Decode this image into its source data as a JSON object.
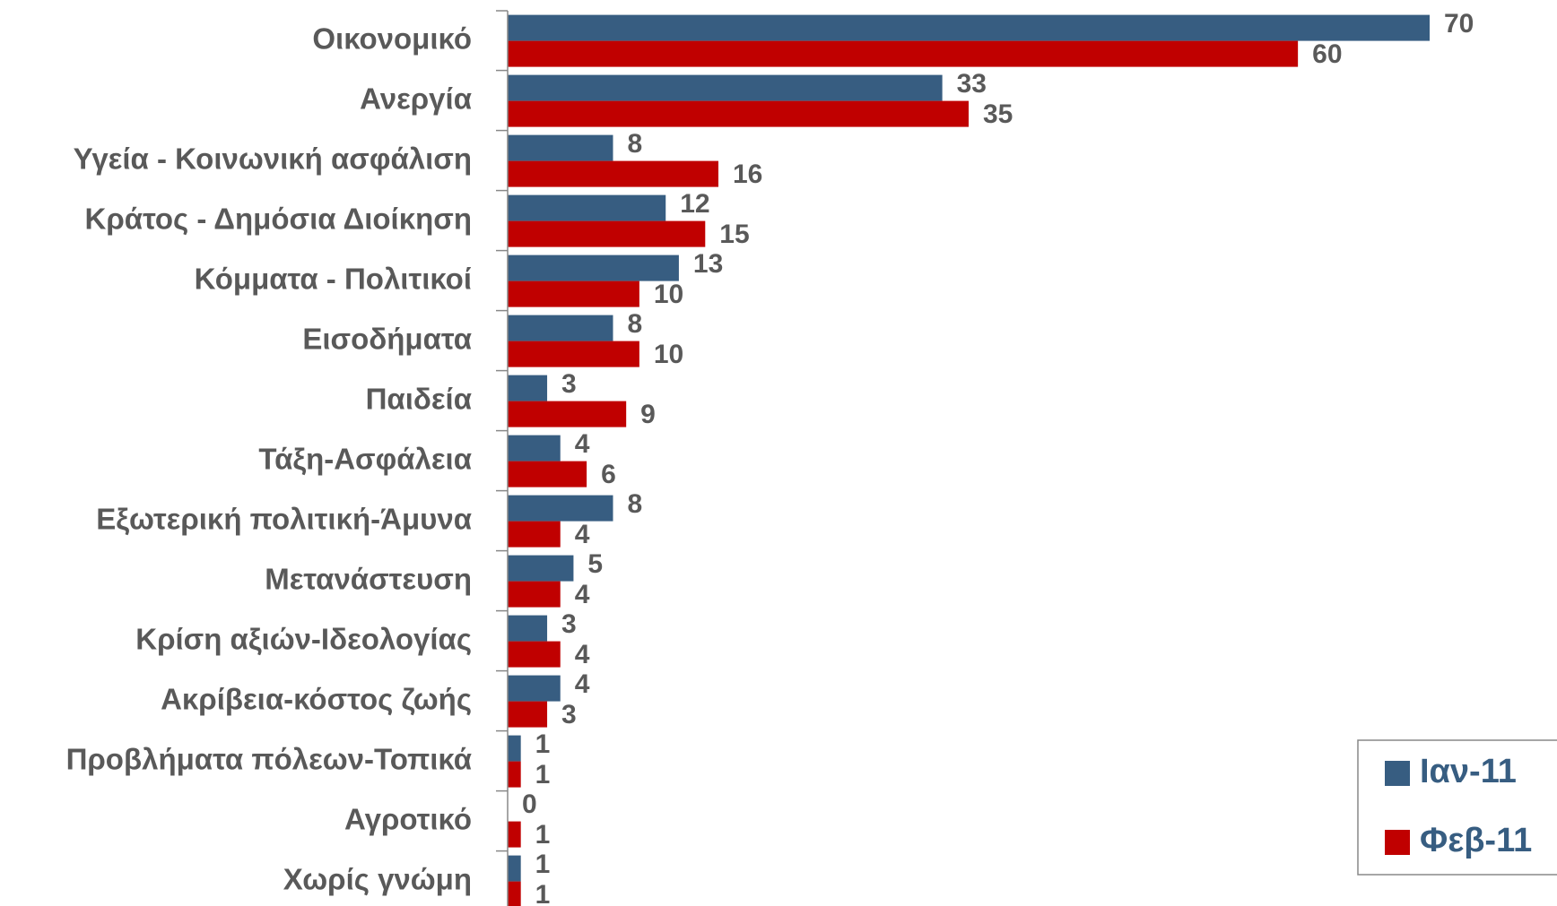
{
  "chart_data": {
    "type": "bar",
    "orientation": "horizontal",
    "categories": [
      "Οικονομικό",
      "Ανεργία",
      "Υγεία - Κοινωνική ασφάλιση",
      "Κράτος - Δημόσια Διοίκηση",
      "Κόμματα - Πολιτικοί",
      "Εισοδήματα",
      "Παιδεία",
      "Τάξη-Ασφάλεια",
      "Εξωτερική πολιτική-Άμυνα",
      "Μετανάστευση",
      "Κρίση αξιών-Ιδεολογίας",
      "Ακρίβεια-κόστος ζωής",
      "Προβλήματα πόλεων-Τοπικά",
      "Αγροτικό",
      "Χωρίς γνώμη"
    ],
    "series": [
      {
        "name": "Ιαν-11",
        "color": "#375d81",
        "values": [
          70,
          33,
          8,
          12,
          13,
          8,
          3,
          4,
          8,
          5,
          3,
          4,
          1,
          0,
          1
        ]
      },
      {
        "name": "Φεβ-11",
        "color": "#c00000",
        "values": [
          60,
          35,
          16,
          15,
          10,
          10,
          9,
          6,
          4,
          4,
          4,
          3,
          1,
          1,
          1
        ]
      }
    ],
    "xlim": [
      0,
      70
    ],
    "legend": "bottom-right"
  }
}
